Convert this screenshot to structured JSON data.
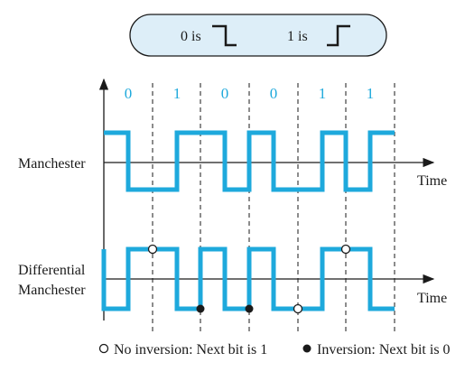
{
  "legend_top": {
    "zero_label": "0 is",
    "one_label": "1 is",
    "box_fill": "#ddeef8",
    "box_stroke": "#1a1a1a"
  },
  "bits": [
    "0",
    "1",
    "0",
    "0",
    "1",
    "1"
  ],
  "signals": {
    "manchester": {
      "label": "Manchester",
      "axis_label": "Time"
    },
    "differential": {
      "label_line1": "Differential",
      "label_line2": "Manchester",
      "axis_label": "Time"
    }
  },
  "legend_bottom": {
    "no_inversion": "No inversion: Next bit is 1",
    "inversion": "Inversion: Next bit is 0"
  },
  "colors": {
    "signal": "#1ea9dc",
    "bit_labels": "#1ea9dc",
    "axis": "#1a1a1a"
  }
}
